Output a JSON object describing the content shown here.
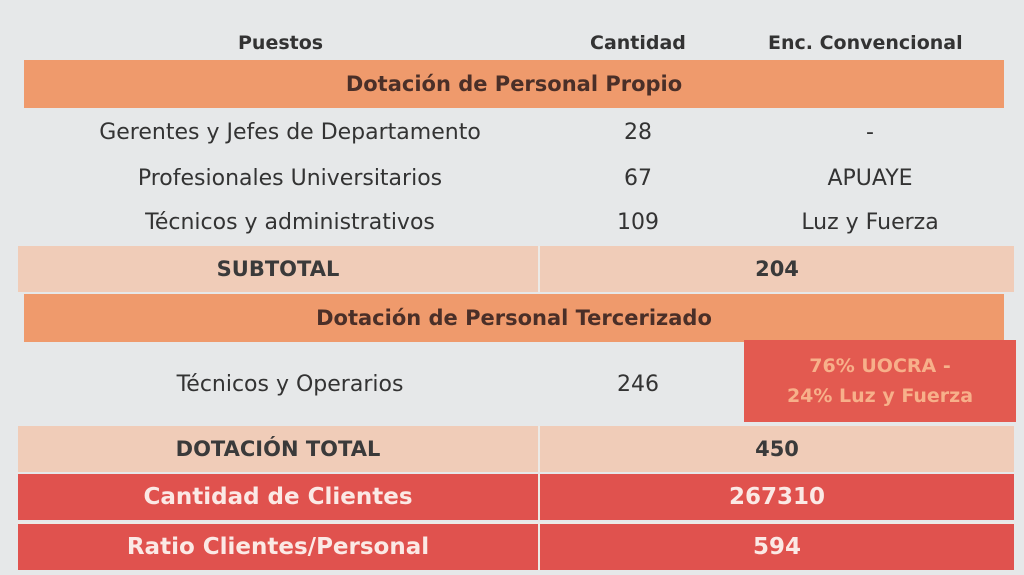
{
  "header": {
    "col1": "Puestos",
    "col2": "Cantidad",
    "col3": "Enc. Convencional"
  },
  "section_propio": "Dotación de Personal Propio",
  "rows_propio": [
    {
      "puesto": "Gerentes y Jefes de Departamento",
      "cantidad": "28",
      "convenio": "-"
    },
    {
      "puesto": "Profesionales Universitarios",
      "cantidad": "67",
      "convenio": "APUAYE"
    },
    {
      "puesto": "Técnicos y administrativos",
      "cantidad": "109",
      "convenio": "Luz y Fuerza"
    }
  ],
  "subtotal": {
    "label": "SUBTOTAL",
    "value": "204"
  },
  "section_tercerizado": "Dotación de Personal Tercerizado",
  "row_tercerizado": {
    "puesto": "Técnicos y Operarios",
    "cantidad": "246",
    "convenio_line1": "76% UOCRA -",
    "convenio_line2": "24% Luz y Fuerza"
  },
  "total": {
    "label": "DOTACIÓN TOTAL",
    "value": "450"
  },
  "clientes": {
    "label": "Cantidad de Clientes",
    "value": "267310"
  },
  "ratio": {
    "label": "Ratio Clientes/Personal",
    "value": "594"
  },
  "colors": {
    "section_band": "#ef9a6c",
    "peach_row": "#f0ccb8",
    "red_row": "#e0524e",
    "background": "#e6e8e9"
  }
}
